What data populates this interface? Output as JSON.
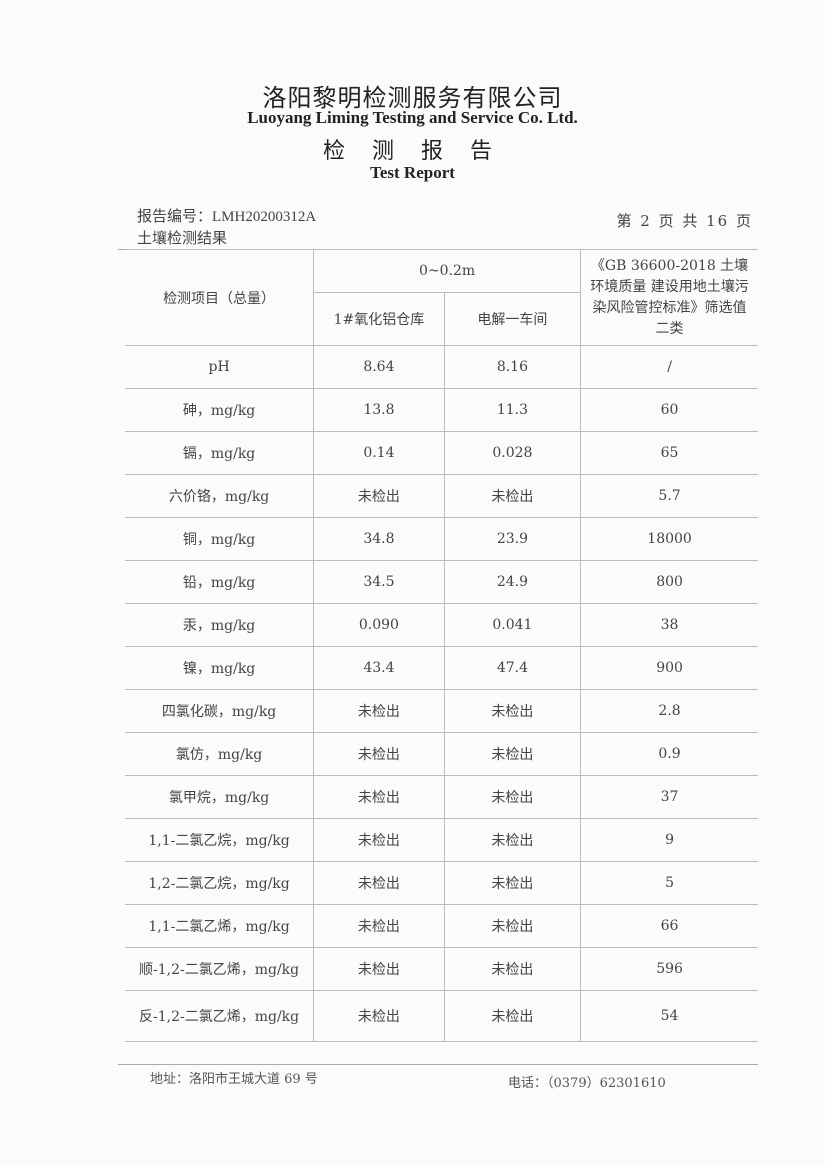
{
  "header": {
    "company_cn": "洛阳黎明检测服务有限公司",
    "company_en": "Luoyang Liming Testing and Service Co. Ltd.",
    "title_cn": "检 测 报 告",
    "title_en": "Test Report"
  },
  "meta": {
    "report_no_label": "报告编号：",
    "report_no": "LMH20200312A",
    "page": "第 2 页 共 16 页",
    "section": "土壤检测结果"
  },
  "table": {
    "col_item": "检测项目（总量）",
    "depth": "0~0.2m",
    "site1": "1#氧化铝仓库",
    "site2": "电解一车间",
    "standard": "《GB 36600-2018 土壤环境质量 建设用地土壤污染风险管控标准》筛选值二类",
    "rows": [
      {
        "item": "pH",
        "v1": "8.64",
        "v2": "8.16",
        "std": "/"
      },
      {
        "item": "砷，mg/kg",
        "v1": "13.8",
        "v2": "11.3",
        "std": "60"
      },
      {
        "item": "镉，mg/kg",
        "v1": "0.14",
        "v2": "0.028",
        "std": "65"
      },
      {
        "item": "六价铬，mg/kg",
        "v1": "未检出",
        "v2": "未检出",
        "std": "5.7"
      },
      {
        "item": "铜，mg/kg",
        "v1": "34.8",
        "v2": "23.9",
        "std": "18000"
      },
      {
        "item": "铅，mg/kg",
        "v1": "34.5",
        "v2": "24.9",
        "std": "800"
      },
      {
        "item": "汞，mg/kg",
        "v1": "0.090",
        "v2": "0.041",
        "std": "38"
      },
      {
        "item": "镍，mg/kg",
        "v1": "43.4",
        "v2": "47.4",
        "std": "900"
      },
      {
        "item": "四氯化碳，mg/kg",
        "v1": "未检出",
        "v2": "未检出",
        "std": "2.8"
      },
      {
        "item": "氯仿，mg/kg",
        "v1": "未检出",
        "v2": "未检出",
        "std": "0.9"
      },
      {
        "item": "氯甲烷，mg/kg",
        "v1": "未检出",
        "v2": "未检出",
        "std": "37"
      },
      {
        "item": "1,1-二氯乙烷，mg/kg",
        "v1": "未检出",
        "v2": "未检出",
        "std": "9"
      },
      {
        "item": "1,2-二氯乙烷，mg/kg",
        "v1": "未检出",
        "v2": "未检出",
        "std": "5"
      },
      {
        "item": "1,1-二氯乙烯，mg/kg",
        "v1": "未检出",
        "v2": "未检出",
        "std": "66"
      },
      {
        "item": "顺-1,2-二氯乙烯，mg/kg",
        "v1": "未检出",
        "v2": "未检出",
        "std": "596"
      },
      {
        "item": "反-1,2-二氯乙烯，mg/kg",
        "v1": "未检出",
        "v2": "未检出",
        "std": "54"
      }
    ]
  },
  "footer": {
    "address": "地址：洛阳市王城大道 69 号",
    "phone": "电话：（0379）62301610"
  }
}
